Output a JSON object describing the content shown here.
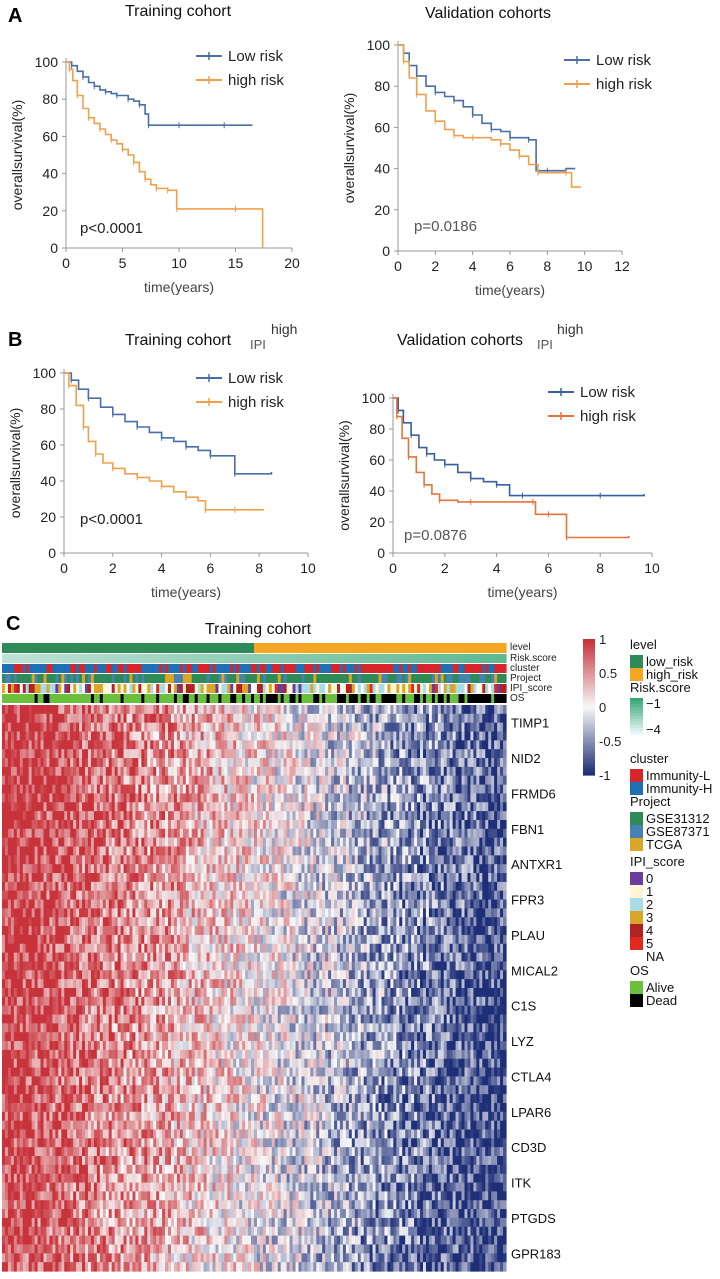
{
  "chart_data": [
    {
      "type": "line",
      "panel_label": "A",
      "title": "Training cohort",
      "title_superscript": "",
      "xlabel": "time(years)",
      "ylabel": "overallsurvival(%)",
      "xlim": [
        0,
        20
      ],
      "ylim": [
        0,
        100
      ],
      "xticks": [
        "0",
        "5",
        "10",
        "15",
        "20"
      ],
      "yticks": [
        "0",
        "20",
        "40",
        "60",
        "80",
        "100"
      ],
      "pvalue": "p<0.0001",
      "series": [
        {
          "name": "Low risk",
          "color": "#4a6fa5",
          "points": [
            [
              0,
              100
            ],
            [
              0.5,
              98
            ],
            [
              1,
              95
            ],
            [
              1.5,
              92
            ],
            [
              2,
              89
            ],
            [
              2.5,
              87
            ],
            [
              3,
              85
            ],
            [
              3.5,
              84
            ],
            [
              4,
              83
            ],
            [
              4.5,
              82
            ],
            [
              5,
              82
            ],
            [
              5.5,
              80
            ],
            [
              6,
              79
            ],
            [
              6.5,
              77
            ],
            [
              7,
              72
            ],
            [
              7.3,
              66
            ],
            [
              8,
              66
            ],
            [
              10,
              66
            ],
            [
              12,
              66
            ],
            [
              14,
              66
            ],
            [
              16.5,
              66
            ]
          ]
        },
        {
          "name": "high risk",
          "color": "#f0a04b",
          "points": [
            [
              0,
              100
            ],
            [
              0.3,
              96
            ],
            [
              0.6,
              90
            ],
            [
              1,
              82
            ],
            [
              1.5,
              75
            ],
            [
              2,
              70
            ],
            [
              2.5,
              67
            ],
            [
              3,
              64
            ],
            [
              3.5,
              61
            ],
            [
              4,
              58
            ],
            [
              4.5,
              56
            ],
            [
              5,
              53
            ],
            [
              5.5,
              50
            ],
            [
              6,
              46
            ],
            [
              6.5,
              41
            ],
            [
              7,
              37
            ],
            [
              7.5,
              34
            ],
            [
              8,
              32
            ],
            [
              8.5,
              32
            ],
            [
              9,
              31
            ],
            [
              9.7,
              31
            ],
            [
              9.8,
              21
            ],
            [
              12,
              21
            ],
            [
              15,
              21
            ],
            [
              17.3,
              21
            ],
            [
              17.4,
              0
            ]
          ]
        }
      ]
    },
    {
      "type": "line",
      "panel_label": "",
      "title": "Validation cohorts",
      "title_superscript": "",
      "xlabel": "time(years)",
      "ylabel": "overallsurvival(%)",
      "xlim": [
        0,
        12
      ],
      "ylim": [
        0,
        100
      ],
      "xticks": [
        "0",
        "2",
        "4",
        "6",
        "8",
        "10",
        "12"
      ],
      "yticks": [
        "0",
        "20",
        "40",
        "60",
        "80",
        "100"
      ],
      "pvalue": "p=0.0186",
      "series": [
        {
          "name": "Low risk",
          "color": "#4a6fa5",
          "points": [
            [
              0,
              100
            ],
            [
              0.3,
              96
            ],
            [
              0.6,
              90
            ],
            [
              1,
              85
            ],
            [
              1.5,
              80
            ],
            [
              2,
              77
            ],
            [
              2.5,
              75
            ],
            [
              3,
              73
            ],
            [
              3.5,
              70
            ],
            [
              4,
              66
            ],
            [
              4.5,
              62
            ],
            [
              5,
              59
            ],
            [
              5.5,
              58
            ],
            [
              6,
              55
            ],
            [
              6.5,
              55
            ],
            [
              7,
              54
            ],
            [
              7.4,
              39
            ],
            [
              8,
              39
            ],
            [
              9,
              40
            ],
            [
              9.5,
              40
            ]
          ]
        },
        {
          "name": "high risk",
          "color": "#f0a04b",
          "points": [
            [
              0,
              100
            ],
            [
              0.3,
              92
            ],
            [
              0.6,
              84
            ],
            [
              1,
              76
            ],
            [
              1.5,
              68
            ],
            [
              2,
              63
            ],
            [
              2.5,
              59
            ],
            [
              3,
              56
            ],
            [
              3.5,
              55
            ],
            [
              4,
              55
            ],
            [
              5,
              54
            ],
            [
              5.5,
              52
            ],
            [
              6,
              49
            ],
            [
              6.5,
              46
            ],
            [
              7,
              42
            ],
            [
              7.5,
              38
            ],
            [
              8,
              38
            ],
            [
              9,
              38
            ],
            [
              9.3,
              31
            ],
            [
              9.8,
              31
            ]
          ]
        }
      ]
    },
    {
      "type": "line",
      "panel_label": "B",
      "title": "Training cohort",
      "title_superscript": "high",
      "title_sub": "IPI",
      "xlabel": "time(years)",
      "ylabel": "overallsurvival(%)",
      "xlim": [
        0,
        10
      ],
      "ylim": [
        0,
        100
      ],
      "xticks": [
        "0",
        "2",
        "4",
        "6",
        "8",
        "10"
      ],
      "yticks": [
        "0",
        "20",
        "40",
        "60",
        "80",
        "100"
      ],
      "pvalue": "p<0.0001",
      "series": [
        {
          "name": "Low risk",
          "color": "#4a6fa5",
          "points": [
            [
              0,
              100
            ],
            [
              0.3,
              96
            ],
            [
              0.6,
              91
            ],
            [
              1,
              86
            ],
            [
              1.5,
              81
            ],
            [
              2,
              77
            ],
            [
              2.5,
              73
            ],
            [
              3,
              70
            ],
            [
              3.5,
              67
            ],
            [
              4,
              64
            ],
            [
              4.5,
              62
            ],
            [
              5,
              59
            ],
            [
              5.5,
              57
            ],
            [
              6,
              54
            ],
            [
              6.5,
              54
            ],
            [
              7,
              44
            ],
            [
              8,
              44
            ],
            [
              8.5,
              45
            ]
          ]
        },
        {
          "name": "high risk",
          "color": "#f0a04b",
          "points": [
            [
              0,
              100
            ],
            [
              0.2,
              93
            ],
            [
              0.5,
              82
            ],
            [
              0.8,
              70
            ],
            [
              1,
              62
            ],
            [
              1.3,
              55
            ],
            [
              1.6,
              50
            ],
            [
              2,
              47
            ],
            [
              2.5,
              44
            ],
            [
              3,
              42
            ],
            [
              3.5,
              40
            ],
            [
              4,
              37
            ],
            [
              4.5,
              34
            ],
            [
              5,
              31
            ],
            [
              5.5,
              29
            ],
            [
              5.8,
              24
            ],
            [
              6.5,
              24
            ],
            [
              7,
              24
            ],
            [
              8.2,
              24
            ]
          ]
        }
      ]
    },
    {
      "type": "line",
      "panel_label": "",
      "title": "Validation cohorts",
      "title_superscript": "high",
      "title_sub": "IPI",
      "xlabel": "time(years)",
      "ylabel": "overallsurvival(%)",
      "xlim": [
        0,
        10
      ],
      "ylim": [
        0,
        100
      ],
      "xticks": [
        "0",
        "2",
        "4",
        "6",
        "8",
        "10"
      ],
      "yticks": [
        "0",
        "20",
        "40",
        "60",
        "80",
        "100"
      ],
      "pvalue": "p=0.0876",
      "series": [
        {
          "name": "Low risk",
          "color": "#3a5f9e",
          "points": [
            [
              0,
              100
            ],
            [
              0.2,
              92
            ],
            [
              0.4,
              84
            ],
            [
              0.7,
              76
            ],
            [
              1,
              68
            ],
            [
              1.3,
              64
            ],
            [
              1.6,
              60
            ],
            [
              2,
              57
            ],
            [
              2.5,
              52
            ],
            [
              3,
              48
            ],
            [
              3.5,
              46
            ],
            [
              4,
              44
            ],
            [
              4.5,
              37
            ],
            [
              5,
              37
            ],
            [
              6,
              37
            ],
            [
              8,
              37
            ],
            [
              9.7,
              38
            ]
          ]
        },
        {
          "name": "high risk",
          "color": "#e8733a",
          "points": [
            [
              0,
              100
            ],
            [
              0.15,
              88
            ],
            [
              0.35,
              74
            ],
            [
              0.6,
              62
            ],
            [
              0.9,
              52
            ],
            [
              1.2,
              44
            ],
            [
              1.5,
              38
            ],
            [
              1.8,
              34
            ],
            [
              2.5,
              33
            ],
            [
              3,
              33
            ],
            [
              4,
              33
            ],
            [
              5.4,
              33
            ],
            [
              5.5,
              25
            ],
            [
              6,
              25
            ],
            [
              6.6,
              25
            ],
            [
              6.7,
              10
            ],
            [
              8,
              10
            ],
            [
              9.1,
              11
            ]
          ]
        }
      ]
    },
    {
      "type": "heatmap",
      "panel_label": "C",
      "title": "Training cohort",
      "annotation_tracks": [
        "level",
        "Risk.score",
        "cluster",
        "Project",
        "IPI_score",
        "OS"
      ],
      "genes": [
        "TIMP1",
        "NID2",
        "FRMD6",
        "FBN1",
        "ANTXR1",
        "FPR3",
        "PLAU",
        "MICAL2",
        "C1S",
        "LYZ",
        "CTLA4",
        "LPAR6",
        "CD3D",
        "ITK",
        "PTGDS",
        "GPR183"
      ],
      "colorbar": {
        "ticks": [
          "1",
          "0.5",
          "0",
          "-0.5",
          "-1"
        ],
        "range": [
          -1,
          1
        ],
        "high_color": "#c8323a",
        "mid_color": "#f7f7f7",
        "low_color": "#1e2f78"
      },
      "legend": [
        {
          "title": "level",
          "items": [
            {
              "label": "low_risk",
              "color": "#2e8b57"
            },
            {
              "label": "high_risk",
              "color": "#f5a623"
            }
          ]
        },
        {
          "title": "Risk.score",
          "items": [
            {
              "label": "−1",
              "color": "#3aa876"
            },
            {
              "label": "",
              "color": "#8fd0b6"
            },
            {
              "label": "−4",
              "color": "#e8f5f7"
            }
          ]
        },
        {
          "title": "cluster",
          "items": [
            {
              "label": "Immunity-L",
              "color": "#d7262b"
            },
            {
              "label": "Immunity-H",
              "color": "#1f6fb5"
            }
          ]
        },
        {
          "title": "Project",
          "items": [
            {
              "label": "GSE31312",
              "color": "#2e8b57"
            },
            {
              "label": "GSE87371",
              "color": "#4682b4"
            },
            {
              "label": "TCGA",
              "color": "#d9a627"
            }
          ]
        },
        {
          "title": "IPI_score",
          "items": [
            {
              "label": "0",
              "color": "#6a3d9a"
            },
            {
              "label": "1",
              "color": "#fff6d5"
            },
            {
              "label": "2",
              "color": "#a9dde6"
            },
            {
              "label": "3",
              "color": "#d9a627"
            },
            {
              "label": "4",
              "color": "#b22222"
            },
            {
              "label": "5",
              "color": "#e3281f"
            },
            {
              "label": "NA",
              "color": "#ffffff"
            }
          ]
        },
        {
          "title": "OS",
          "items": [
            {
              "label": "Alive",
              "color": "#6abf3c"
            },
            {
              "label": "Dead",
              "color": "#000000"
            }
          ]
        }
      ]
    }
  ]
}
